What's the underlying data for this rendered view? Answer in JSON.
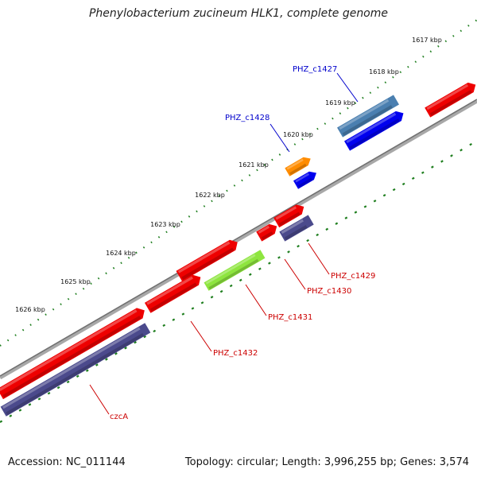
{
  "title": "Phenylobacterium zucineum HLK1, complete genome",
  "footer": {
    "accession": "Accession: NC_011144",
    "summary": "Topology: circular; Length: 3,996,255 bp; Genes: 3,574"
  },
  "colors": {
    "backbone": "#8a8a8a",
    "tick": "#1e7e1e",
    "label_blue": "#0000cc",
    "label_red": "#cc0000"
  },
  "ticks": [
    {
      "label": "1617 kbp",
      "position_kbp": 1617
    },
    {
      "label": "1618 kbp",
      "position_kbp": 1618
    },
    {
      "label": "1619 kbp",
      "position_kbp": 1619
    },
    {
      "label": "1620 kbp",
      "position_kbp": 1620
    },
    {
      "label": "1621 kbp",
      "position_kbp": 1621
    },
    {
      "label": "1622 kbp",
      "position_kbp": 1622
    },
    {
      "label": "1623 kbp",
      "position_kbp": 1623
    },
    {
      "label": "1624 kbp",
      "position_kbp": 1624
    },
    {
      "label": "1625 kbp",
      "position_kbp": 1625
    },
    {
      "label": "1626 kbp",
      "position_kbp": 1626
    }
  ],
  "genes": [
    {
      "name": "PHZ_c1427",
      "label_color": "blue",
      "cds_color": "#4a7fb0",
      "gene_color": "#0000ee"
    },
    {
      "name": "PHZ_c1428",
      "label_color": "blue",
      "cds_color": "#ff8c00",
      "gene_color": "#0000ee"
    },
    {
      "name": "PHZ_c1429",
      "label_color": "red",
      "cds_color": "#ee0000",
      "gene_color": "#4b4a8c"
    },
    {
      "name": "PHZ_c1430",
      "label_color": "red",
      "cds_color": "#ee0000",
      "gene_color": null
    },
    {
      "name": "PHZ_c1431",
      "label_color": "red",
      "cds_color": "#ee0000",
      "gene_color": "#8ee53f"
    },
    {
      "name": "PHZ_c1432",
      "label_color": "red",
      "cds_color": "#ee0000",
      "gene_color": null
    },
    {
      "name": "czcA",
      "label_color": "red",
      "cds_color": "#ee0000",
      "gene_color": "#4b4a8c"
    },
    {
      "name": "",
      "label_color": null,
      "cds_color": "#ee0000",
      "gene_color": null
    }
  ]
}
